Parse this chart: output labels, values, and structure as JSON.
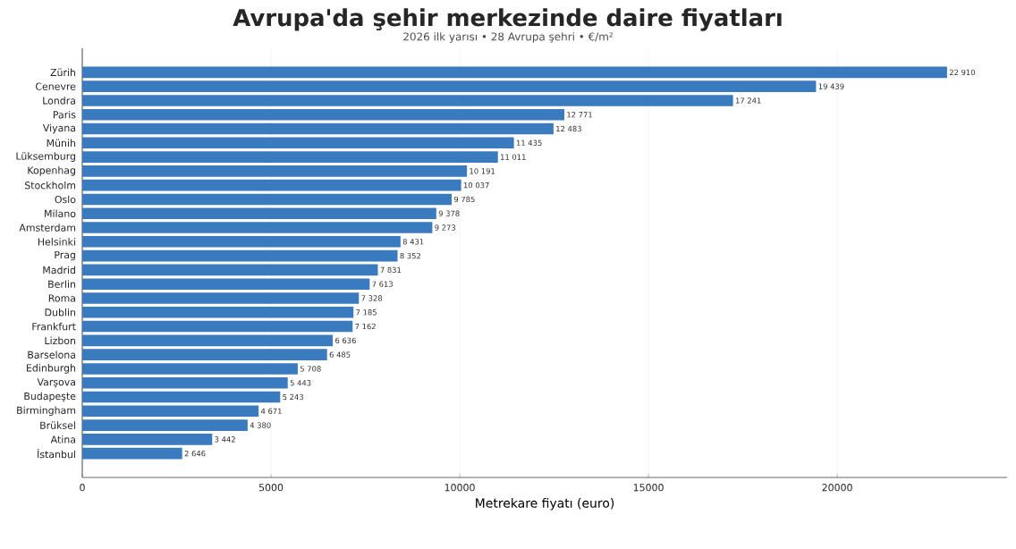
{
  "chart_data": {
    "type": "bar",
    "orientation": "horizontal",
    "title": "Avrupa'da şehir merkezinde daire fiyatları",
    "subtitle": "2026 ilk yarısı • 28 Avrupa şehri • €/m²",
    "xlabel": "Metrekare fiyatı (euro)",
    "categories": [
      "Zürih",
      "Cenevre",
      "Londra",
      "Paris",
      "Viyana",
      "Münih",
      "Lüksemburg",
      "Kopenhag",
      "Stockholm",
      "Oslo",
      "Milano",
      "Amsterdam",
      "Helsinki",
      "Prag",
      "Madrid",
      "Berlin",
      "Roma",
      "Dublin",
      "Frankfurt",
      "Lizbon",
      "Barselona",
      "Edinburgh",
      "Varşova",
      "Budapeşte",
      "Birmingham",
      "Brüksel",
      "Atina",
      "İstanbul"
    ],
    "values": [
      22910,
      19439,
      17241,
      12771,
      12483,
      11435,
      11011,
      10191,
      10037,
      9785,
      9378,
      9273,
      8431,
      8352,
      7831,
      7613,
      7328,
      7185,
      7162,
      6636,
      6485,
      5708,
      5443,
      5243,
      4671,
      4380,
      3442,
      2646
    ],
    "value_labels": [
      "22 910",
      "19 439",
      "17 241",
      "12 771",
      "12 483",
      "11 435",
      "11 011",
      "10 191",
      "10 037",
      "9 785",
      "9 378",
      "9 273",
      "8 431",
      "8 352",
      "7 831",
      "7 613",
      "7 328",
      "7 185",
      "7 162",
      "6 636",
      "6 485",
      "5 708",
      "5 443",
      "5 243",
      "4 671",
      "4 380",
      "3 442",
      "2 646"
    ],
    "color": "#3a7bbf",
    "xlim": [
      0,
      24500
    ],
    "xticks": [
      0,
      5000,
      10000,
      15000,
      20000
    ],
    "grid": "x"
  }
}
